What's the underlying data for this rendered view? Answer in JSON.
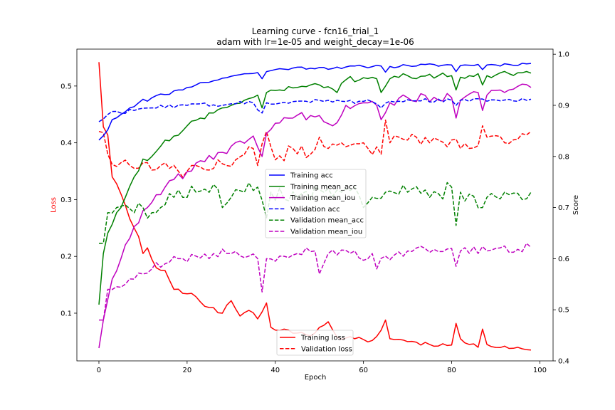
{
  "chart_data": {
    "type": "line",
    "title": "Learning curve - fcn16_trial_1",
    "subtitle": "adam with lr=1e-05 and weight_decay=1e-06",
    "xlabel": "Epoch",
    "ylabel_left": "Loss",
    "ylabel_right": "Score",
    "xlim": [
      -5,
      103
    ],
    "ylim_left": [
      0.016,
      0.565
    ],
    "ylim_right": [
      0.4,
      1.01
    ],
    "xticks": [
      0,
      20,
      40,
      60,
      80,
      100
    ],
    "yticks_left": [
      0.1,
      0.2,
      0.3,
      0.4,
      0.5
    ],
    "yticks_right": [
      0.4,
      0.5,
      0.6,
      0.7,
      0.8,
      0.9,
      1.0
    ],
    "grid": false,
    "legend_scores_location": "center",
    "legend_loss_location": "lower center",
    "colors": {
      "acc": "#0000ff",
      "mean_acc": "#008000",
      "mean_iou": "#bf00bf",
      "loss": "#ff0000",
      "loss_label": "#ff0000"
    },
    "score_series": [
      {
        "name": "Training acc",
        "color": "#0000ff",
        "style": "solid",
        "anchors": [
          [
            0,
            0.832
          ],
          [
            2,
            0.852
          ],
          [
            3,
            0.872
          ],
          [
            5,
            0.882
          ],
          [
            7,
            0.895
          ],
          [
            9,
            0.905
          ],
          [
            10,
            0.912
          ],
          [
            11,
            0.908
          ],
          [
            13,
            0.919
          ],
          [
            15,
            0.921
          ],
          [
            18,
            0.93
          ],
          [
            20,
            0.935
          ],
          [
            22,
            0.94
          ],
          [
            24,
            0.945
          ],
          [
            26,
            0.948
          ],
          [
            28,
            0.953
          ],
          [
            30,
            0.957
          ],
          [
            32,
            0.96
          ],
          [
            34,
            0.962
          ],
          [
            36,
            0.964
          ],
          [
            37,
            0.952
          ],
          [
            38,
            0.966
          ],
          [
            40,
            0.97
          ],
          [
            44,
            0.973
          ],
          [
            50,
            0.974
          ],
          [
            55,
            0.972
          ],
          [
            56,
            0.975
          ],
          [
            60,
            0.976
          ],
          [
            64,
            0.977
          ],
          [
            65,
            0.965
          ],
          [
            66,
            0.976
          ],
          [
            70,
            0.978
          ],
          [
            80,
            0.979
          ],
          [
            81,
            0.966
          ],
          [
            82,
            0.978
          ],
          [
            86,
            0.98
          ],
          [
            87,
            0.97
          ],
          [
            88,
            0.979
          ],
          [
            93,
            0.98
          ],
          [
            98,
            0.982
          ]
        ],
        "noise": 0.003
      },
      {
        "name": "Training mean_acc",
        "color": "#008000",
        "style": "solid",
        "anchors": [
          [
            0,
            0.51
          ],
          [
            1,
            0.61
          ],
          [
            2,
            0.65
          ],
          [
            4,
            0.69
          ],
          [
            6,
            0.72
          ],
          [
            8,
            0.76
          ],
          [
            10,
            0.795
          ],
          [
            12,
            0.8
          ],
          [
            14,
            0.82
          ],
          [
            17,
            0.84
          ],
          [
            20,
            0.86
          ],
          [
            23,
            0.875
          ],
          [
            26,
            0.885
          ],
          [
            28,
            0.895
          ],
          [
            30,
            0.9
          ],
          [
            33,
            0.91
          ],
          [
            36,
            0.92
          ],
          [
            37,
            0.895
          ],
          [
            38,
            0.925
          ],
          [
            41,
            0.93
          ],
          [
            45,
            0.935
          ],
          [
            48,
            0.94
          ],
          [
            50,
            0.94
          ],
          [
            53,
            0.932
          ],
          [
            54,
            0.925
          ],
          [
            56,
            0.95
          ],
          [
            60,
            0.954
          ],
          [
            63,
            0.952
          ],
          [
            64,
            0.925
          ],
          [
            66,
            0.952
          ],
          [
            70,
            0.958
          ],
          [
            80,
            0.958
          ],
          [
            81,
            0.93
          ],
          [
            82,
            0.955
          ],
          [
            86,
            0.962
          ],
          [
            87,
            0.94
          ],
          [
            88,
            0.958
          ],
          [
            93,
            0.962
          ],
          [
            98,
            0.963
          ]
        ],
        "noise": 0.006
      },
      {
        "name": "Training mean_iou",
        "color": "#bf00bf",
        "style": "solid",
        "anchors": [
          [
            0,
            0.425
          ],
          [
            1,
            0.48
          ],
          [
            2,
            0.52
          ],
          [
            3,
            0.56
          ],
          [
            5,
            0.6
          ],
          [
            7,
            0.64
          ],
          [
            9,
            0.67
          ],
          [
            11,
            0.7
          ],
          [
            13,
            0.725
          ],
          [
            15,
            0.74
          ],
          [
            17,
            0.755
          ],
          [
            20,
            0.77
          ],
          [
            24,
            0.79
          ],
          [
            28,
            0.808
          ],
          [
            30,
            0.82
          ],
          [
            32,
            0.83
          ],
          [
            35,
            0.84
          ],
          [
            37,
            0.8
          ],
          [
            38,
            0.845
          ],
          [
            40,
            0.865
          ],
          [
            44,
            0.875
          ],
          [
            48,
            0.88
          ],
          [
            50,
            0.88
          ],
          [
            53,
            0.86
          ],
          [
            56,
            0.9
          ],
          [
            60,
            0.905
          ],
          [
            63,
            0.9
          ],
          [
            64,
            0.872
          ],
          [
            66,
            0.905
          ],
          [
            70,
            0.915
          ],
          [
            80,
            0.915
          ],
          [
            81,
            0.875
          ],
          [
            82,
            0.91
          ],
          [
            86,
            0.925
          ],
          [
            87,
            0.89
          ],
          [
            88,
            0.92
          ],
          [
            93,
            0.93
          ],
          [
            98,
            0.935
          ]
        ],
        "noise": 0.009
      },
      {
        "name": "Validation acc",
        "color": "#0000ff",
        "style": "dashed",
        "anchors": [
          [
            0,
            0.868
          ],
          [
            2,
            0.882
          ],
          [
            3,
            0.888
          ],
          [
            5,
            0.885
          ],
          [
            8,
            0.89
          ],
          [
            12,
            0.895
          ],
          [
            20,
            0.9
          ],
          [
            30,
            0.903
          ],
          [
            35,
            0.905
          ],
          [
            37,
            0.885
          ],
          [
            38,
            0.905
          ],
          [
            45,
            0.908
          ],
          [
            55,
            0.908
          ],
          [
            62,
            0.907
          ],
          [
            64,
            0.895
          ],
          [
            66,
            0.908
          ],
          [
            80,
            0.91
          ],
          [
            81,
            0.9
          ],
          [
            82,
            0.91
          ],
          [
            98,
            0.912
          ]
        ],
        "noise": 0.004
      },
      {
        "name": "Validation mean_acc",
        "color": "#008000",
        "style": "dashed",
        "anchors": [
          [
            0,
            0.63
          ],
          [
            1,
            0.63
          ],
          [
            2,
            0.69
          ],
          [
            4,
            0.7
          ],
          [
            6,
            0.705
          ],
          [
            8,
            0.69
          ],
          [
            10,
            0.7
          ],
          [
            12,
            0.69
          ],
          [
            14,
            0.7
          ],
          [
            17,
            0.72
          ],
          [
            19,
            0.72
          ],
          [
            22,
            0.73
          ],
          [
            26,
            0.745
          ],
          [
            28,
            0.7
          ],
          [
            30,
            0.72
          ],
          [
            33,
            0.73
          ],
          [
            36,
            0.74
          ],
          [
            38,
            0.68
          ],
          [
            39,
            0.73
          ],
          [
            45,
            0.72
          ],
          [
            50,
            0.735
          ],
          [
            55,
            0.73
          ],
          [
            58,
            0.74
          ],
          [
            60,
            0.7
          ],
          [
            62,
            0.72
          ],
          [
            65,
            0.73
          ],
          [
            70,
            0.73
          ],
          [
            75,
            0.72
          ],
          [
            80,
            0.74
          ],
          [
            81,
            0.665
          ],
          [
            82,
            0.73
          ],
          [
            87,
            0.7
          ],
          [
            88,
            0.72
          ],
          [
            92,
            0.73
          ],
          [
            98,
            0.73
          ]
        ],
        "noise": 0.016
      },
      {
        "name": "Validation mean_iou",
        "color": "#bf00bf",
        "style": "dashed",
        "anchors": [
          [
            0,
            0.48
          ],
          [
            1,
            0.48
          ],
          [
            2,
            0.54
          ],
          [
            4,
            0.545
          ],
          [
            6,
            0.55
          ],
          [
            8,
            0.56
          ],
          [
            10,
            0.57
          ],
          [
            12,
            0.58
          ],
          [
            15,
            0.59
          ],
          [
            18,
            0.6
          ],
          [
            22,
            0.605
          ],
          [
            26,
            0.61
          ],
          [
            30,
            0.61
          ],
          [
            34,
            0.605
          ],
          [
            36,
            0.6
          ],
          [
            37,
            0.535
          ],
          [
            38,
            0.6
          ],
          [
            41,
            0.605
          ],
          [
            45,
            0.61
          ],
          [
            49,
            0.615
          ],
          [
            50,
            0.57
          ],
          [
            52,
            0.61
          ],
          [
            58,
            0.615
          ],
          [
            61,
            0.6
          ],
          [
            62,
            0.61
          ],
          [
            63,
            0.58
          ],
          [
            65,
            0.605
          ],
          [
            70,
            0.615
          ],
          [
            80,
            0.62
          ],
          [
            81,
            0.585
          ],
          [
            82,
            0.615
          ],
          [
            90,
            0.62
          ],
          [
            98,
            0.622
          ]
        ],
        "noise": 0.009
      }
    ],
    "loss_series": [
      {
        "name": "Training loss",
        "color": "#ff0000",
        "style": "solid",
        "anchors": [
          [
            0,
            0.542
          ],
          [
            1,
            0.428
          ],
          [
            2,
            0.414
          ],
          [
            3,
            0.34
          ],
          [
            4,
            0.328
          ],
          [
            5,
            0.31
          ],
          [
            6,
            0.29
          ],
          [
            7,
            0.266
          ],
          [
            8,
            0.25
          ],
          [
            9,
            0.235
          ],
          [
            10,
            0.205
          ],
          [
            11,
            0.215
          ],
          [
            12,
            0.195
          ],
          [
            13,
            0.18
          ],
          [
            15,
            0.175
          ],
          [
            17,
            0.142
          ],
          [
            19,
            0.135
          ],
          [
            21,
            0.135
          ],
          [
            23,
            0.12
          ],
          [
            25,
            0.11
          ],
          [
            28,
            0.1
          ],
          [
            30,
            0.122
          ],
          [
            32,
            0.095
          ],
          [
            34,
            0.105
          ],
          [
            36,
            0.09
          ],
          [
            38,
            0.118
          ],
          [
            39,
            0.075
          ],
          [
            42,
            0.072
          ],
          [
            45,
            0.065
          ],
          [
            48,
            0.06
          ],
          [
            50,
            0.075
          ],
          [
            52,
            0.085
          ],
          [
            54,
            0.058
          ],
          [
            58,
            0.055
          ],
          [
            62,
            0.052
          ],
          [
            64,
            0.07
          ],
          [
            65,
            0.088
          ],
          [
            66,
            0.055
          ],
          [
            70,
            0.05
          ],
          [
            75,
            0.045
          ],
          [
            80,
            0.044
          ],
          [
            81,
            0.082
          ],
          [
            82,
            0.055
          ],
          [
            84,
            0.045
          ],
          [
            86,
            0.04
          ],
          [
            87,
            0.072
          ],
          [
            88,
            0.045
          ],
          [
            92,
            0.042
          ],
          [
            95,
            0.04
          ],
          [
            98,
            0.035
          ]
        ],
        "noise": 0.004
      },
      {
        "name": "Validation loss",
        "color": "#ff0000",
        "style": "dashed",
        "anchors": [
          [
            0,
            0.42
          ],
          [
            1,
            0.418
          ],
          [
            2,
            0.38
          ],
          [
            3,
            0.362
          ],
          [
            5,
            0.365
          ],
          [
            7,
            0.36
          ],
          [
            8,
            0.355
          ],
          [
            10,
            0.365
          ],
          [
            12,
            0.352
          ],
          [
            14,
            0.36
          ],
          [
            16,
            0.355
          ],
          [
            18,
            0.35
          ],
          [
            20,
            0.35
          ],
          [
            22,
            0.36
          ],
          [
            25,
            0.352
          ],
          [
            27,
            0.37
          ],
          [
            29,
            0.36
          ],
          [
            31,
            0.37
          ],
          [
            33,
            0.38
          ],
          [
            35,
            0.39
          ],
          [
            36,
            0.36
          ],
          [
            38,
            0.42
          ],
          [
            40,
            0.37
          ],
          [
            44,
            0.39
          ],
          [
            48,
            0.38
          ],
          [
            50,
            0.41
          ],
          [
            52,
            0.39
          ],
          [
            55,
            0.4
          ],
          [
            60,
            0.4
          ],
          [
            64,
            0.38
          ],
          [
            65,
            0.44
          ],
          [
            66,
            0.4
          ],
          [
            70,
            0.405
          ],
          [
            75,
            0.4
          ],
          [
            80,
            0.405
          ],
          [
            82,
            0.39
          ],
          [
            86,
            0.395
          ],
          [
            87,
            0.43
          ],
          [
            88,
            0.41
          ],
          [
            92,
            0.4
          ],
          [
            98,
            0.42
          ]
        ],
        "noise": 0.012
      }
    ]
  }
}
